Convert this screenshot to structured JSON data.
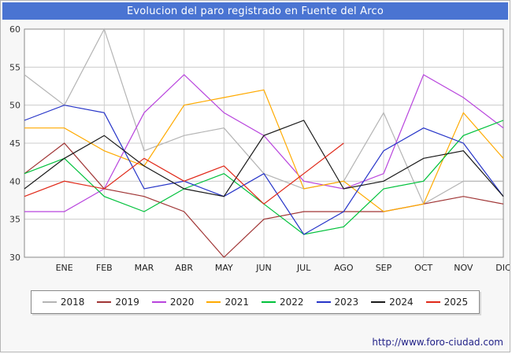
{
  "header": {
    "title": "Evolucion del paro registrado en Fuente del Arco",
    "bar_color": "#4a74d2"
  },
  "footer": {
    "url": "http://www.foro-ciudad.com"
  },
  "chart_data": {
    "type": "line",
    "title": "Evolucion del paro registrado en Fuente del Arco",
    "xlabel": "",
    "ylabel": "",
    "ylim": [
      30,
      60
    ],
    "ytick_step": 5,
    "grid": true,
    "legend_position": "bottom",
    "plot_bg": "#ffffff",
    "grid_color": "#cccccc",
    "categories": [
      "",
      "ENE",
      "FEB",
      "MAR",
      "ABR",
      "MAY",
      "JUN",
      "JUL",
      "AGO",
      "SEP",
      "OCT",
      "NOV",
      "DIC"
    ],
    "series": [
      {
        "name": "2018",
        "color": "#b4b4b4",
        "values": [
          54,
          50,
          60,
          44,
          46,
          47,
          41,
          39,
          40,
          49,
          37,
          40,
          40
        ]
      },
      {
        "name": "2019",
        "color": "#a03535",
        "values": [
          41,
          45,
          39,
          38,
          36,
          30,
          35,
          36,
          36,
          36,
          37,
          38,
          37
        ]
      },
      {
        "name": "2020",
        "color": "#b844dd",
        "values": [
          36,
          36,
          39,
          49,
          54,
          49,
          46,
          40,
          39,
          41,
          54,
          51,
          47
        ]
      },
      {
        "name": "2021",
        "color": "#ffaa00",
        "values": [
          47,
          47,
          44,
          42,
          50,
          51,
          52,
          39,
          40,
          36,
          37,
          49,
          43
        ]
      },
      {
        "name": "2022",
        "color": "#00c13b",
        "values": [
          41,
          43,
          38,
          36,
          39,
          41,
          37,
          33,
          34,
          39,
          40,
          46,
          48
        ]
      },
      {
        "name": "2023",
        "color": "#2634c8",
        "values": [
          48,
          50,
          49,
          39,
          40,
          38,
          41,
          33,
          36,
          44,
          47,
          45,
          38
        ]
      },
      {
        "name": "2024",
        "color": "#1a1a1a",
        "values": [
          39,
          43,
          46,
          42,
          39,
          38,
          46,
          48,
          39,
          40,
          43,
          44,
          38
        ]
      },
      {
        "name": "2025",
        "color": "#e02818",
        "values": [
          38,
          40,
          39,
          43,
          40,
          42,
          37,
          41,
          45,
          null,
          null,
          null,
          null
        ]
      }
    ]
  }
}
